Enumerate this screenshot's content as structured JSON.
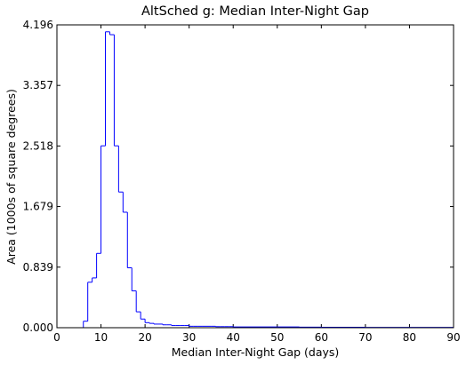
{
  "chart_data": {
    "type": "line",
    "style": "step-histogram",
    "title": "AltSched  g: Median Inter-Night Gap",
    "xlabel": "Median Inter-Night Gap (days)",
    "ylabel": "Area (1000s of square degrees)",
    "xlim": [
      0,
      90
    ],
    "ylim": [
      0,
      4.196
    ],
    "xticks": [
      "0",
      "10",
      "20",
      "30",
      "40",
      "50",
      "60",
      "70",
      "80",
      "90"
    ],
    "yticks": [
      "0.000",
      "0.839",
      "1.679",
      "2.518",
      "3.357",
      "4.196"
    ],
    "grid": false,
    "bin_width": 1,
    "series": [
      {
        "color": "#0000ff",
        "bin_starts": [
          0,
          1,
          2,
          3,
          4,
          5,
          6,
          7,
          8,
          9,
          10,
          11,
          12,
          13,
          14,
          15,
          16,
          17,
          18,
          19,
          20,
          21,
          22,
          23,
          24,
          25,
          26,
          27,
          28,
          29,
          30,
          31,
          32,
          33,
          34,
          35,
          36,
          37,
          38,
          39,
          40,
          45,
          50,
          55,
          60,
          70,
          80
        ],
        "bin_ends": [
          1,
          2,
          3,
          4,
          5,
          6,
          7,
          8,
          9,
          10,
          11,
          12,
          13,
          14,
          15,
          16,
          17,
          18,
          19,
          20,
          21,
          22,
          23,
          24,
          25,
          26,
          27,
          28,
          29,
          30,
          31,
          32,
          33,
          34,
          35,
          36,
          37,
          38,
          39,
          40,
          45,
          50,
          55,
          60,
          70,
          80,
          90
        ],
        "values": [
          0,
          0,
          0,
          0,
          0,
          0,
          0.09,
          0.63,
          0.69,
          1.03,
          2.52,
          4.1,
          4.06,
          2.52,
          1.88,
          1.6,
          0.83,
          0.51,
          0.22,
          0.12,
          0.07,
          0.06,
          0.05,
          0.05,
          0.04,
          0.04,
          0.03,
          0.03,
          0.03,
          0.03,
          0.02,
          0.02,
          0.02,
          0.02,
          0.02,
          0.02,
          0.015,
          0.015,
          0.015,
          0.015,
          0.01,
          0.01,
          0.01,
          0.008,
          0.006,
          0.005,
          0.004
        ]
      }
    ]
  }
}
